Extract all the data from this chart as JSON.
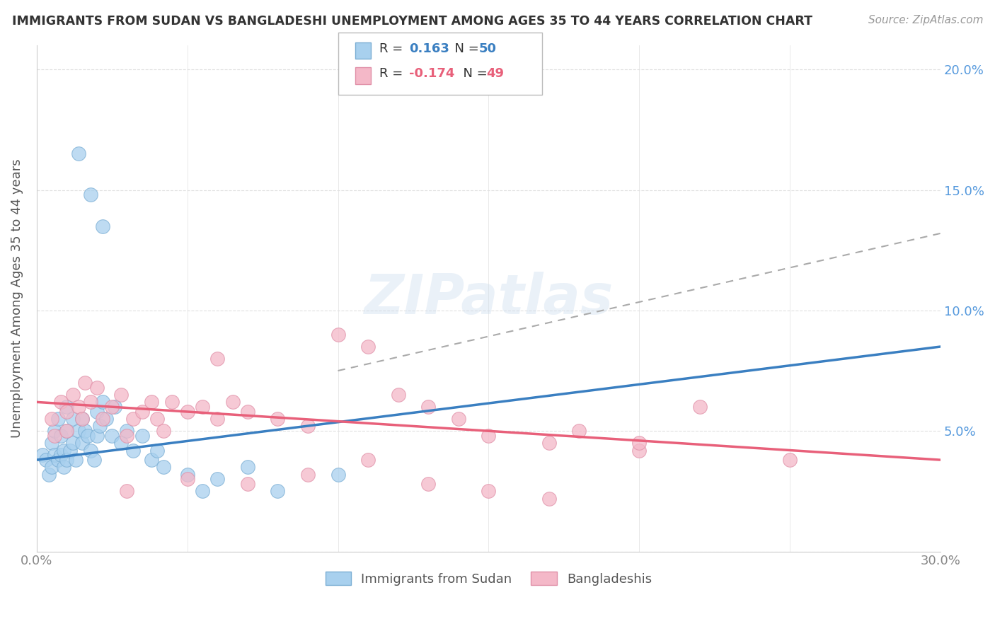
{
  "title": "IMMIGRANTS FROM SUDAN VS BANGLADESHI UNEMPLOYMENT AMONG AGES 35 TO 44 YEARS CORRELATION CHART",
  "source": "Source: ZipAtlas.com",
  "ylabel": "Unemployment Among Ages 35 to 44 years",
  "xlim": [
    0.0,
    0.3
  ],
  "ylim": [
    0.0,
    0.21
  ],
  "r_blue": 0.163,
  "n_blue": 50,
  "r_pink": -0.174,
  "n_pink": 49,
  "blue_color": "#A8D0EE",
  "pink_color": "#F4B8C8",
  "blue_line_color": "#3A7FC1",
  "pink_line_color": "#E8607A",
  "trendline_dashed_color": "#AAAAAA",
  "legend_label_blue": "Immigrants from Sudan",
  "legend_label_pink": "Bangladeshis",
  "background_color": "#FFFFFF",
  "grid_color": "#E0E0E0",
  "blue_scatter_x": [
    0.002,
    0.003,
    0.004,
    0.005,
    0.005,
    0.006,
    0.006,
    0.007,
    0.007,
    0.008,
    0.008,
    0.009,
    0.009,
    0.01,
    0.01,
    0.01,
    0.011,
    0.012,
    0.012,
    0.013,
    0.014,
    0.015,
    0.015,
    0.016,
    0.017,
    0.018,
    0.019,
    0.02,
    0.02,
    0.021,
    0.022,
    0.023,
    0.025,
    0.026,
    0.028,
    0.03,
    0.032,
    0.035,
    0.038,
    0.04,
    0.042,
    0.05,
    0.055,
    0.06,
    0.07,
    0.08,
    0.1,
    0.014,
    0.018,
    0.022
  ],
  "blue_scatter_y": [
    0.04,
    0.038,
    0.032,
    0.045,
    0.035,
    0.04,
    0.05,
    0.038,
    0.055,
    0.04,
    0.048,
    0.042,
    0.035,
    0.038,
    0.05,
    0.06,
    0.042,
    0.055,
    0.045,
    0.038,
    0.05,
    0.045,
    0.055,
    0.05,
    0.048,
    0.042,
    0.038,
    0.048,
    0.058,
    0.052,
    0.062,
    0.055,
    0.048,
    0.06,
    0.045,
    0.05,
    0.042,
    0.048,
    0.038,
    0.042,
    0.035,
    0.032,
    0.025,
    0.03,
    0.035,
    0.025,
    0.032,
    0.165,
    0.148,
    0.135
  ],
  "pink_scatter_x": [
    0.005,
    0.006,
    0.008,
    0.01,
    0.01,
    0.012,
    0.014,
    0.015,
    0.016,
    0.018,
    0.02,
    0.022,
    0.025,
    0.028,
    0.03,
    0.032,
    0.035,
    0.038,
    0.04,
    0.042,
    0.045,
    0.05,
    0.055,
    0.06,
    0.065,
    0.07,
    0.08,
    0.09,
    0.1,
    0.11,
    0.12,
    0.13,
    0.14,
    0.15,
    0.17,
    0.18,
    0.2,
    0.22,
    0.25,
    0.03,
    0.05,
    0.07,
    0.09,
    0.11,
    0.13,
    0.15,
    0.17,
    0.2,
    0.06
  ],
  "pink_scatter_y": [
    0.055,
    0.048,
    0.062,
    0.058,
    0.05,
    0.065,
    0.06,
    0.055,
    0.07,
    0.062,
    0.068,
    0.055,
    0.06,
    0.065,
    0.048,
    0.055,
    0.058,
    0.062,
    0.055,
    0.05,
    0.062,
    0.058,
    0.06,
    0.055,
    0.062,
    0.058,
    0.055,
    0.052,
    0.09,
    0.085,
    0.065,
    0.06,
    0.055,
    0.048,
    0.045,
    0.05,
    0.042,
    0.06,
    0.038,
    0.025,
    0.03,
    0.028,
    0.032,
    0.038,
    0.028,
    0.025,
    0.022,
    0.045,
    0.08
  ],
  "blue_line_x": [
    0.0,
    0.3
  ],
  "blue_line_y": [
    0.038,
    0.085
  ],
  "pink_line_x": [
    0.0,
    0.3
  ],
  "pink_line_y": [
    0.062,
    0.038
  ],
  "dash_line_x": [
    0.1,
    0.3
  ],
  "dash_line_y": [
    0.075,
    0.132
  ]
}
